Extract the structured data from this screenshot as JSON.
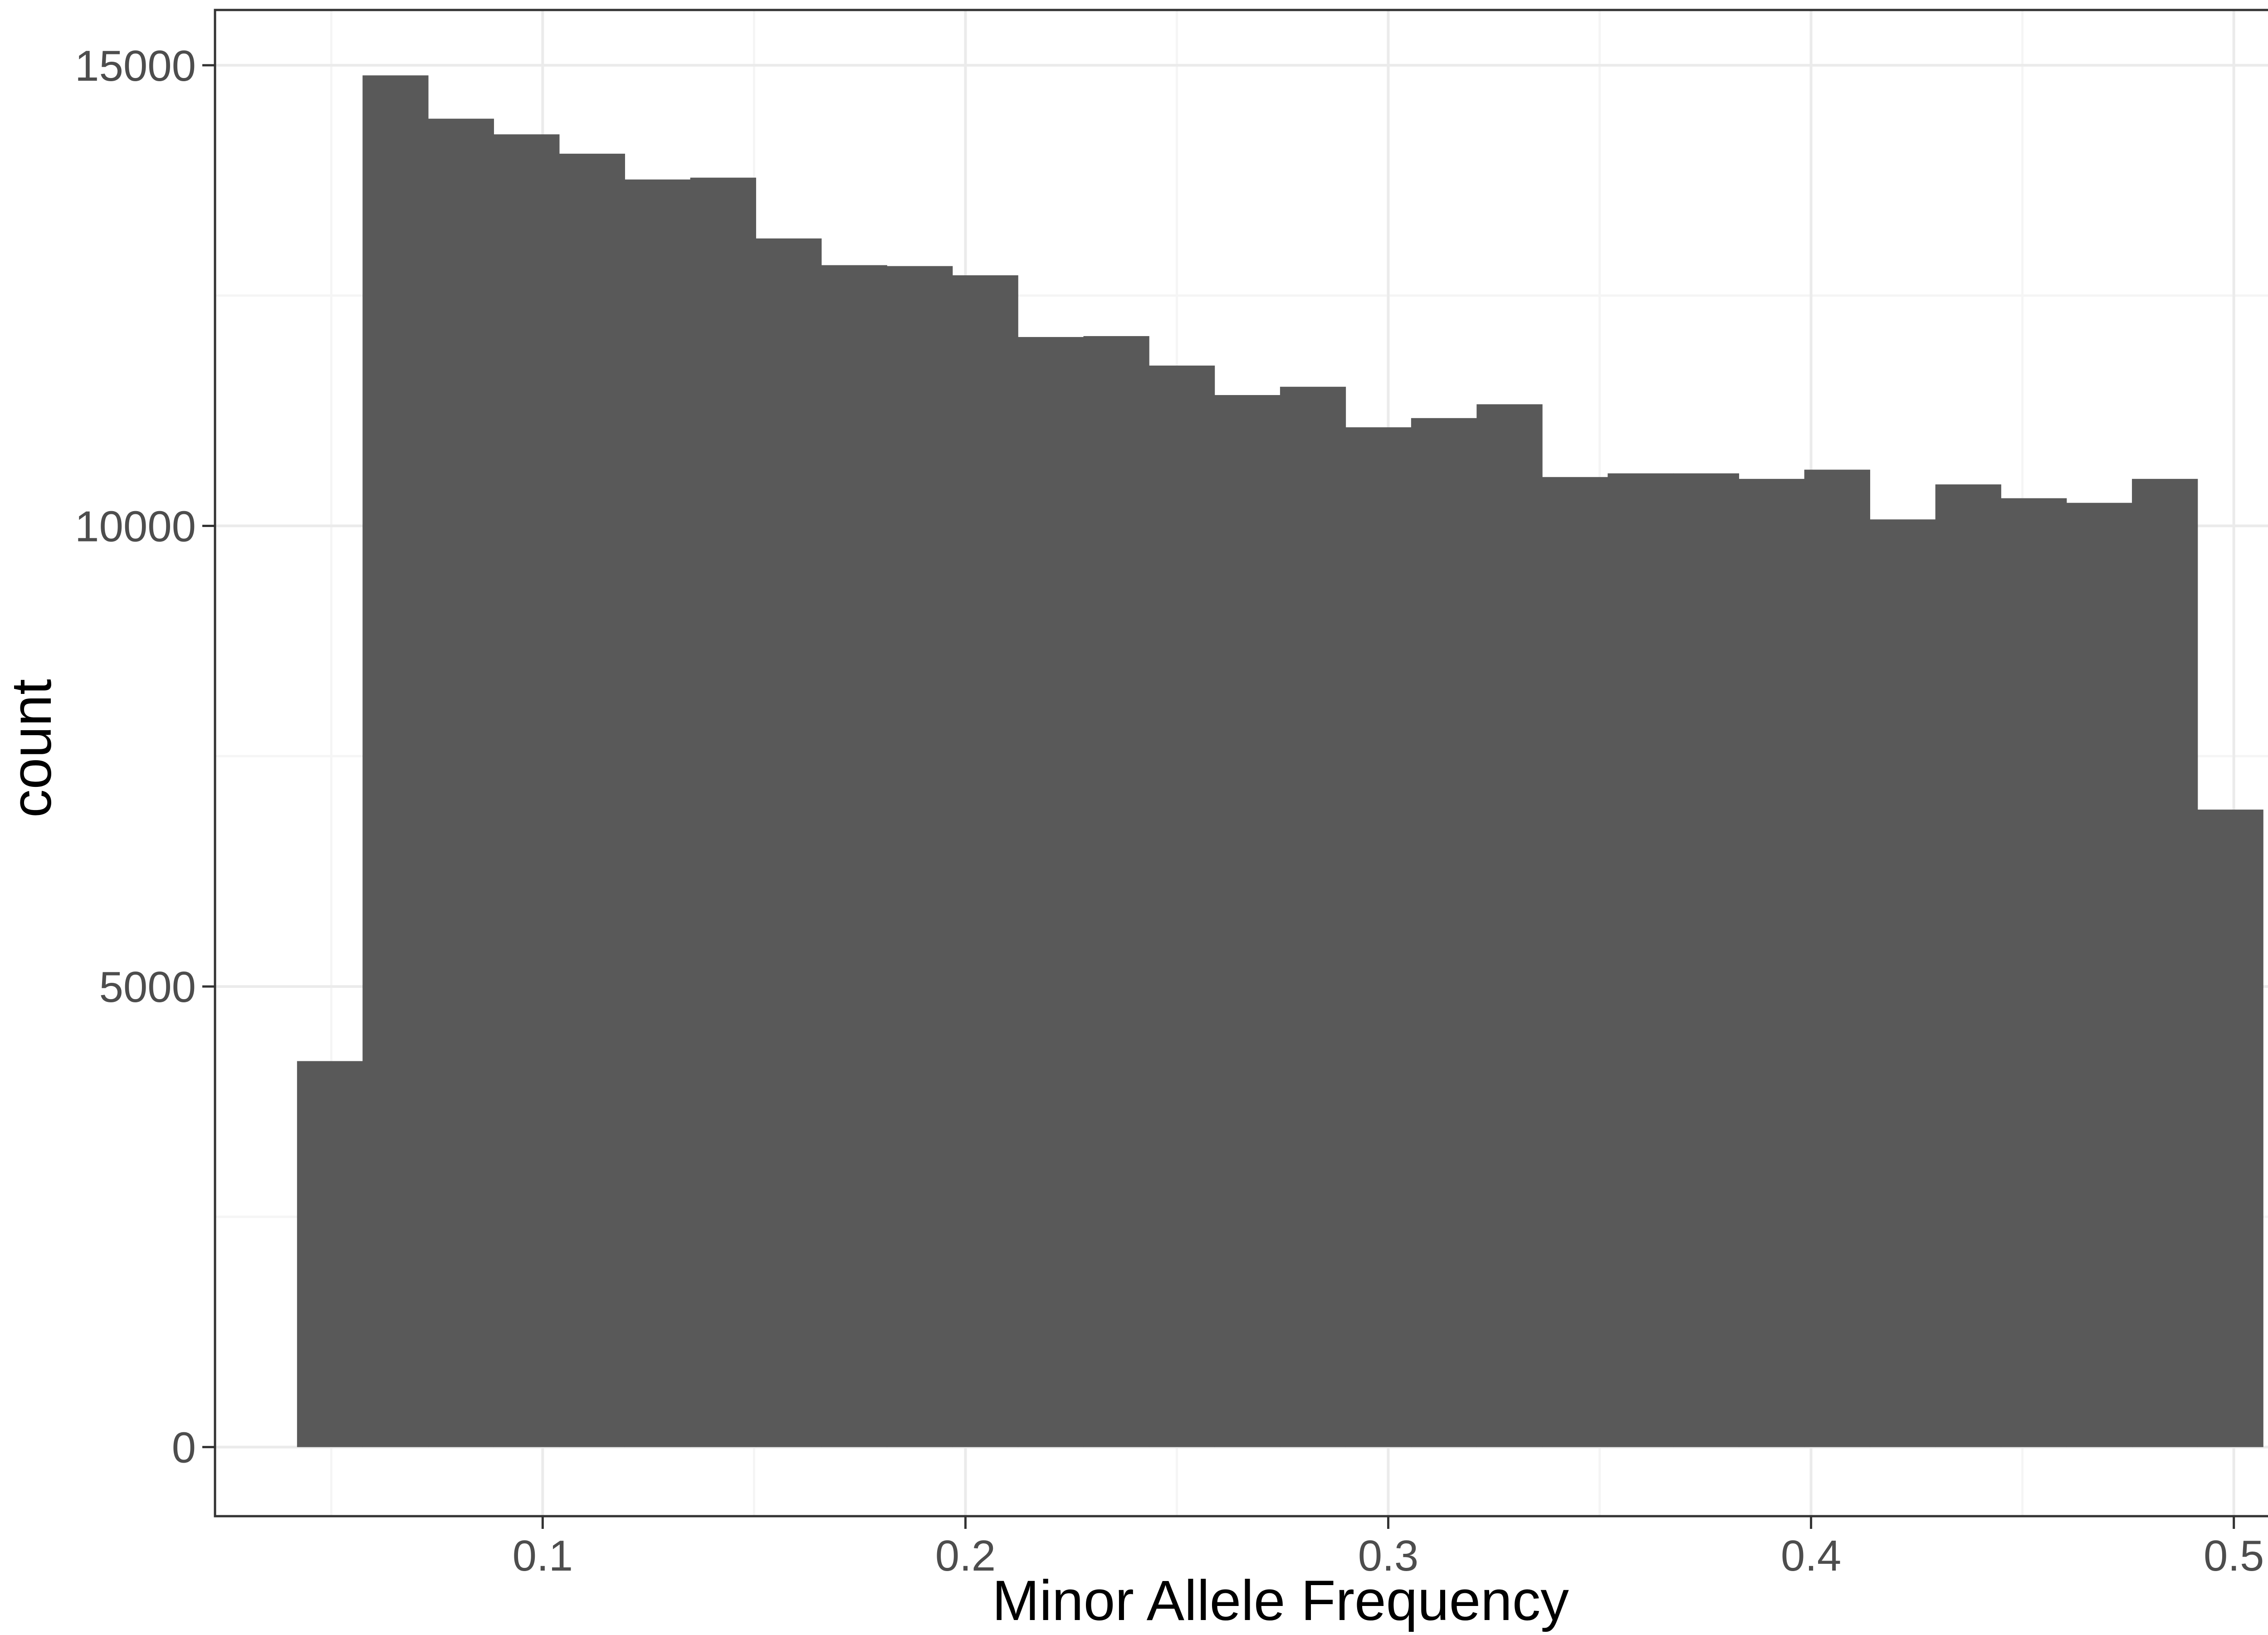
{
  "chart_data": {
    "type": "bar",
    "subtype": "histogram",
    "title": "",
    "xlabel": "Minor Allele Frequency",
    "ylabel": "count",
    "xlim": [
      0.0225,
      0.5275
    ],
    "ylim": [
      -750,
      15600
    ],
    "x_ticks": [
      0.1,
      0.2,
      0.3,
      0.4,
      0.5
    ],
    "x_tick_labels": [
      "0.1",
      "0.2",
      "0.3",
      "0.4",
      "0.5"
    ],
    "y_ticks": [
      0,
      5000,
      10000,
      15000
    ],
    "y_tick_labels": [
      "0",
      "5000",
      "10000",
      "15000"
    ],
    "x_minor_ticks": [
      0.05,
      0.15,
      0.25,
      0.35,
      0.45
    ],
    "y_minor_ticks": [
      2500,
      7500,
      12500
    ],
    "grid": true,
    "legend": "none",
    "bin_width": 0.0155,
    "bins": [
      {
        "x_start": 0.0419,
        "x_end": 0.0574,
        "count": 4190
      },
      {
        "x_start": 0.0574,
        "x_end": 0.0729,
        "count": 14890
      },
      {
        "x_start": 0.0729,
        "x_end": 0.0884,
        "count": 14420
      },
      {
        "x_start": 0.0884,
        "x_end": 0.1039,
        "count": 14250
      },
      {
        "x_start": 0.1039,
        "x_end": 0.1194,
        "count": 14040
      },
      {
        "x_start": 0.1194,
        "x_end": 0.1349,
        "count": 13760
      },
      {
        "x_start": 0.1349,
        "x_end": 0.1504,
        "count": 13780
      },
      {
        "x_start": 0.1504,
        "x_end": 0.1659,
        "count": 13120
      },
      {
        "x_start": 0.1659,
        "x_end": 0.1814,
        "count": 12830
      },
      {
        "x_start": 0.1814,
        "x_end": 0.1969,
        "count": 12820
      },
      {
        "x_start": 0.1969,
        "x_end": 0.2124,
        "count": 12720
      },
      {
        "x_start": 0.2124,
        "x_end": 0.2279,
        "count": 12050
      },
      {
        "x_start": 0.2279,
        "x_end": 0.2434,
        "count": 12060
      },
      {
        "x_start": 0.2434,
        "x_end": 0.2589,
        "count": 11740
      },
      {
        "x_start": 0.2589,
        "x_end": 0.2744,
        "count": 11420
      },
      {
        "x_start": 0.2744,
        "x_end": 0.2899,
        "count": 11510
      },
      {
        "x_start": 0.2899,
        "x_end": 0.3054,
        "count": 11070
      },
      {
        "x_start": 0.3054,
        "x_end": 0.3209,
        "count": 11170
      },
      {
        "x_start": 0.3209,
        "x_end": 0.3364,
        "count": 11320
      },
      {
        "x_start": 0.3364,
        "x_end": 0.3519,
        "count": 10530
      },
      {
        "x_start": 0.3519,
        "x_end": 0.3674,
        "count": 10570
      },
      {
        "x_start": 0.3674,
        "x_end": 0.3829,
        "count": 10570
      },
      {
        "x_start": 0.3829,
        "x_end": 0.3984,
        "count": 10510
      },
      {
        "x_start": 0.3984,
        "x_end": 0.4139,
        "count": 10610
      },
      {
        "x_start": 0.4139,
        "x_end": 0.4294,
        "count": 10070
      },
      {
        "x_start": 0.4294,
        "x_end": 0.4449,
        "count": 10450
      },
      {
        "x_start": 0.4449,
        "x_end": 0.4604,
        "count": 10300
      },
      {
        "x_start": 0.4604,
        "x_end": 0.4759,
        "count": 10250
      },
      {
        "x_start": 0.4759,
        "x_end": 0.4914,
        "count": 10510
      },
      {
        "x_start": 0.4914,
        "x_end": 0.5069,
        "count": 6920
      }
    ],
    "colors": {
      "bar_fill": "#595959",
      "panel_background": "#ffffff",
      "panel_border": "#333333",
      "grid_major": "#ebebeb",
      "grid_minor": "#f5f5f5",
      "tick_mark": "#333333",
      "tick_label": "#4d4d4d",
      "axis_title": "#000000"
    }
  }
}
